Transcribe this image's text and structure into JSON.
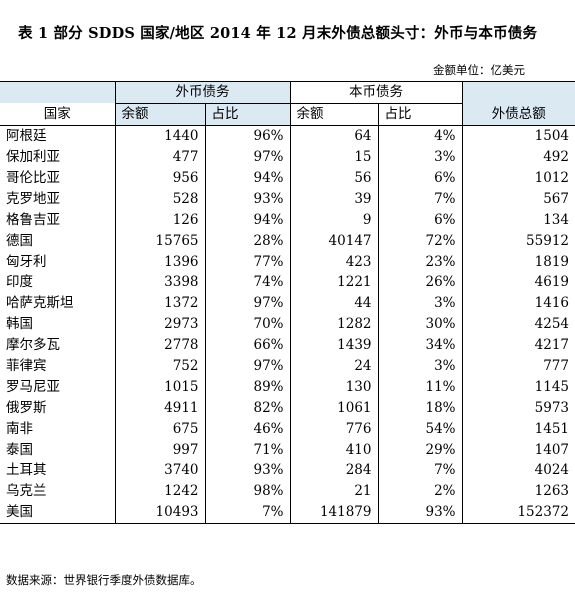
{
  "title": "表 1  部分 SDDS 国家/地区 2014 年 12 月末外债总额头寸：外币与本币债务",
  "unit_label": "金额单位：亿美元",
  "headers": {
    "country": "国家",
    "foreign_group": "外币债务",
    "local_group": "本币债务",
    "total": "外债总额",
    "amount": "余额",
    "share": "占比"
  },
  "rows": [
    {
      "country": "阿根廷",
      "fc_amount": "1440",
      "fc_share": "96%",
      "lc_amount": "64",
      "lc_share": "4%",
      "total": "1504"
    },
    {
      "country": "保加利亚",
      "fc_amount": "477",
      "fc_share": "97%",
      "lc_amount": "15",
      "lc_share": "3%",
      "total": "492"
    },
    {
      "country": "哥伦比亚",
      "fc_amount": "956",
      "fc_share": "94%",
      "lc_amount": "56",
      "lc_share": "6%",
      "total": "1012"
    },
    {
      "country": "克罗地亚",
      "fc_amount": "528",
      "fc_share": "93%",
      "lc_amount": "39",
      "lc_share": "7%",
      "total": "567"
    },
    {
      "country": "格鲁吉亚",
      "fc_amount": "126",
      "fc_share": "94%",
      "lc_amount": "9",
      "lc_share": "6%",
      "total": "134"
    },
    {
      "country": "德国",
      "fc_amount": "15765",
      "fc_share": "28%",
      "lc_amount": "40147",
      "lc_share": "72%",
      "total": "55912"
    },
    {
      "country": "匈牙利",
      "fc_amount": "1396",
      "fc_share": "77%",
      "lc_amount": "423",
      "lc_share": "23%",
      "total": "1819"
    },
    {
      "country": "印度",
      "fc_amount": "3398",
      "fc_share": "74%",
      "lc_amount": "1221",
      "lc_share": "26%",
      "total": "4619"
    },
    {
      "country": "哈萨克斯坦",
      "fc_amount": "1372",
      "fc_share": "97%",
      "lc_amount": "44",
      "lc_share": "3%",
      "total": "1416"
    },
    {
      "country": "韩国",
      "fc_amount": "2973",
      "fc_share": "70%",
      "lc_amount": "1282",
      "lc_share": "30%",
      "total": "4254"
    },
    {
      "country": "摩尔多瓦",
      "fc_amount": "2778",
      "fc_share": "66%",
      "lc_amount": "1439",
      "lc_share": "34%",
      "total": "4217"
    },
    {
      "country": "菲律宾",
      "fc_amount": "752",
      "fc_share": "97%",
      "lc_amount": "24",
      "lc_share": "3%",
      "total": "777"
    },
    {
      "country": "罗马尼亚",
      "fc_amount": "1015",
      "fc_share": "89%",
      "lc_amount": "130",
      "lc_share": "11%",
      "total": "1145"
    },
    {
      "country": "俄罗斯",
      "fc_amount": "4911",
      "fc_share": "82%",
      "lc_amount": "1061",
      "lc_share": "18%",
      "total": "5973"
    },
    {
      "country": "南非",
      "fc_amount": "675",
      "fc_share": "46%",
      "lc_amount": "776",
      "lc_share": "54%",
      "total": "1451"
    },
    {
      "country": "泰国",
      "fc_amount": "997",
      "fc_share": "71%",
      "lc_amount": "410",
      "lc_share": "29%",
      "total": "1407"
    },
    {
      "country": "土耳其",
      "fc_amount": "3740",
      "fc_share": "93%",
      "lc_amount": "284",
      "lc_share": "7%",
      "total": "4024"
    },
    {
      "country": "乌克兰",
      "fc_amount": "1242",
      "fc_share": "98%",
      "lc_amount": "21",
      "lc_share": "2%",
      "total": "1263"
    },
    {
      "country": "美国",
      "fc_amount": "10493",
      "fc_share": "7%",
      "lc_amount": "141879",
      "lc_share": "93%",
      "total": "152372"
    }
  ],
  "source": "数据来源：世界银行季度外债数据库。",
  "colors": {
    "header_shade": "#dbe9f3"
  }
}
